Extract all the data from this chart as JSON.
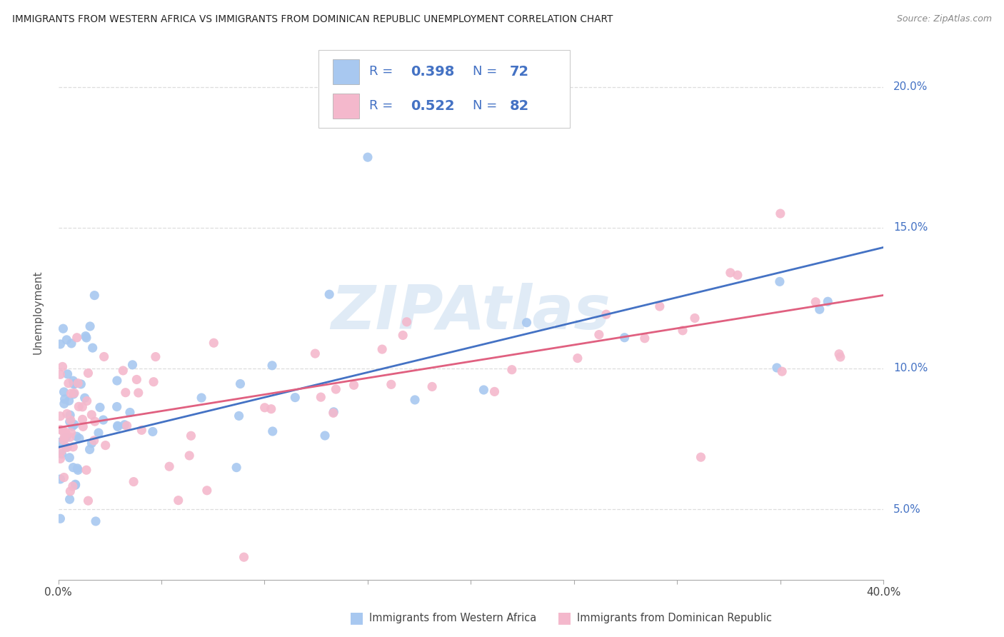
{
  "title": "IMMIGRANTS FROM WESTERN AFRICA VS IMMIGRANTS FROM DOMINICAN REPUBLIC UNEMPLOYMENT CORRELATION CHART",
  "source": "Source: ZipAtlas.com",
  "ylabel": "Unemployment",
  "xlim": [
    0.0,
    0.4
  ],
  "ylim": [
    0.025,
    0.215
  ],
  "yticks": [
    0.05,
    0.1,
    0.15,
    0.2
  ],
  "ytick_labels": [
    "5.0%",
    "10.0%",
    "15.0%",
    "20.0%"
  ],
  "xtick_positions": [
    0.0,
    0.05,
    0.1,
    0.15,
    0.2,
    0.25,
    0.3,
    0.35,
    0.4
  ],
  "xtick_labels": [
    "0.0%",
    "",
    "",
    "",
    "",
    "",
    "",
    "",
    "40.0%"
  ],
  "blue_color": "#a8c8f0",
  "blue_line_color": "#4472c4",
  "pink_color": "#f4b8cc",
  "pink_line_color": "#e06080",
  "legend_text_color": "#4472c4",
  "axis_label_color": "#4472c4",
  "legend_R_blue": "0.398",
  "legend_N_blue": "72",
  "legend_R_pink": "0.522",
  "legend_N_pink": "82",
  "blue_trend_y0": 0.072,
  "blue_trend_y1": 0.143,
  "pink_trend_y0": 0.079,
  "pink_trend_y1": 0.126,
  "watermark": "ZIPAtlas",
  "background_color": "#ffffff",
  "grid_color": "#dddddd"
}
